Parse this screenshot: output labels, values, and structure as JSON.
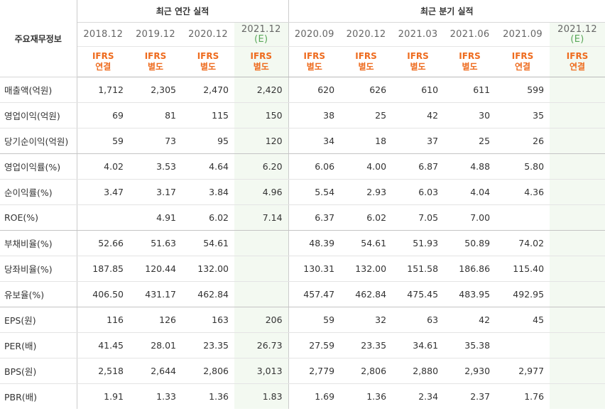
{
  "header": {
    "label_col": "주요재무정보",
    "annual_title": "최근 연간 실적",
    "quarter_title": "최근 분기 실적",
    "periods": [
      {
        "date": "2018.12",
        "est": "",
        "gaap": "IFRS",
        "type": "연결"
      },
      {
        "date": "2019.12",
        "est": "",
        "gaap": "IFRS",
        "type": "별도"
      },
      {
        "date": "2020.12",
        "est": "",
        "gaap": "IFRS",
        "type": "별도"
      },
      {
        "date": "2021.12",
        "est": "(E)",
        "gaap": "IFRS",
        "type": "별도"
      },
      {
        "date": "2020.09",
        "est": "",
        "gaap": "IFRS",
        "type": "별도"
      },
      {
        "date": "2020.12",
        "est": "",
        "gaap": "IFRS",
        "type": "별도"
      },
      {
        "date": "2021.03",
        "est": "",
        "gaap": "IFRS",
        "type": "별도"
      },
      {
        "date": "2021.06",
        "est": "",
        "gaap": "IFRS",
        "type": "별도"
      },
      {
        "date": "2021.09",
        "est": "",
        "gaap": "IFRS",
        "type": "연결"
      },
      {
        "date": "2021.12",
        "est": "(E)",
        "gaap": "IFRS",
        "type": "연결"
      }
    ]
  },
  "rows": [
    {
      "label": "매출액(억원)",
      "values": [
        "1,712",
        "2,305",
        "2,470",
        "2,420",
        "620",
        "626",
        "610",
        "611",
        "599",
        ""
      ]
    },
    {
      "label": "영업이익(억원)",
      "values": [
        "69",
        "81",
        "115",
        "150",
        "38",
        "25",
        "42",
        "30",
        "35",
        ""
      ]
    },
    {
      "label": "당기순이익(억원)",
      "values": [
        "59",
        "73",
        "95",
        "120",
        "34",
        "18",
        "37",
        "25",
        "26",
        ""
      ]
    },
    {
      "label": "영업이익률(%)",
      "values": [
        "4.02",
        "3.53",
        "4.64",
        "6.20",
        "6.06",
        "4.00",
        "6.87",
        "4.88",
        "5.80",
        ""
      ]
    },
    {
      "label": "순이익률(%)",
      "values": [
        "3.47",
        "3.17",
        "3.84",
        "4.96",
        "5.54",
        "2.93",
        "6.03",
        "4.04",
        "4.36",
        ""
      ]
    },
    {
      "label": "ROE(%)",
      "values": [
        "",
        "4.91",
        "6.02",
        "7.14",
        "6.37",
        "6.02",
        "7.05",
        "7.00",
        "",
        ""
      ]
    },
    {
      "label": "부채비율(%)",
      "values": [
        "52.66",
        "51.63",
        "54.61",
        "",
        "48.39",
        "54.61",
        "51.93",
        "50.89",
        "74.02",
        ""
      ]
    },
    {
      "label": "당좌비율(%)",
      "values": [
        "187.85",
        "120.44",
        "132.00",
        "",
        "130.31",
        "132.00",
        "151.58",
        "186.86",
        "115.40",
        ""
      ]
    },
    {
      "label": "유보율(%)",
      "values": [
        "406.50",
        "431.17",
        "462.84",
        "",
        "457.47",
        "462.84",
        "475.45",
        "483.95",
        "492.95",
        ""
      ]
    },
    {
      "label": "EPS(원)",
      "values": [
        "116",
        "126",
        "163",
        "206",
        "59",
        "32",
        "63",
        "42",
        "45",
        ""
      ]
    },
    {
      "label": "PER(배)",
      "values": [
        "41.45",
        "28.01",
        "23.35",
        "26.73",
        "27.59",
        "23.35",
        "34.61",
        "35.38",
        "",
        ""
      ]
    },
    {
      "label": "BPS(원)",
      "values": [
        "2,518",
        "2,644",
        "2,806",
        "3,013",
        "2,779",
        "2,806",
        "2,880",
        "2,930",
        "2,977",
        ""
      ]
    },
    {
      "label": "PBR(배)",
      "values": [
        "1.91",
        "1.33",
        "1.36",
        "1.83",
        "1.69",
        "1.36",
        "2.34",
        "2.37",
        "1.76",
        ""
      ]
    }
  ]
}
